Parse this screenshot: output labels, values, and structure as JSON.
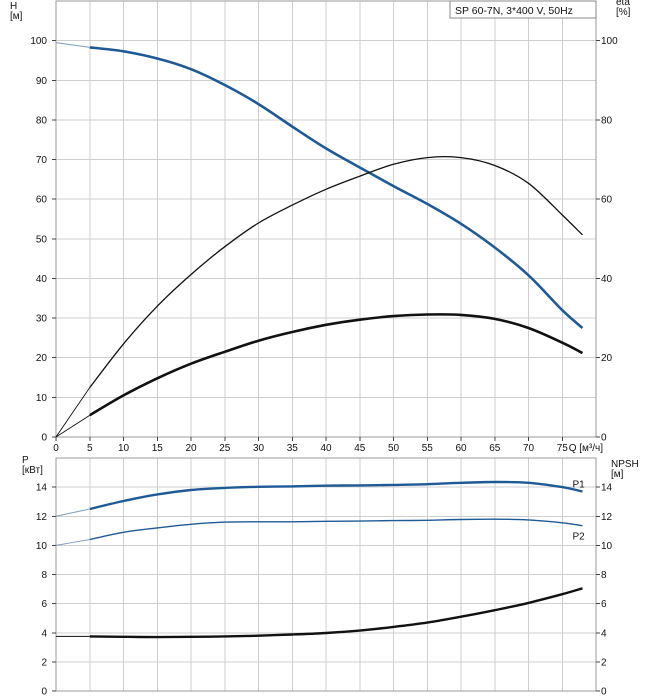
{
  "title": "SP 60-7N, 3*400 V, 50Hz",
  "colors": {
    "blue": "#1f5a96",
    "black": "#111111",
    "grid": "#cfcfcf"
  },
  "chart_data": [
    {
      "type": "line",
      "panel": "head_efficiency",
      "title": "SP 60-7N, 3*400 V, 50Hz",
      "xlabel": "Q [м³/ч]",
      "ylabel": "H\n[м]",
      "ylabel_right": "eta\n[%]",
      "xlim": [
        0,
        80
      ],
      "ylim": [
        0,
        110
      ],
      "ylim_right": [
        0,
        110
      ],
      "x_ticks": [
        0,
        5,
        10,
        15,
        20,
        25,
        30,
        35,
        40,
        45,
        50,
        55,
        60,
        65,
        70,
        75
      ],
      "y_ticks": [
        0,
        10,
        20,
        30,
        40,
        50,
        60,
        70,
        80,
        90,
        100
      ],
      "y_right_ticks": [
        0,
        20,
        40,
        60,
        80,
        100
      ],
      "grid": true,
      "series": [
        {
          "axis": "left",
          "color": "#1f5a96",
          "x": [
            0,
            5,
            10,
            15,
            20,
            25,
            30,
            35,
            40,
            45,
            50,
            55,
            60,
            65,
            70,
            75,
            78
          ],
          "y": [
            99.5,
            98.3,
            97.3,
            95.5,
            92.8,
            88.8,
            84.0,
            78.3,
            72.8,
            68.0,
            63.3,
            58.8,
            53.8,
            47.8,
            40.8,
            32.0,
            27.5
          ]
        },
        {
          "axis": "left",
          "color": "#111111",
          "x": [
            0,
            5,
            10,
            15,
            20,
            25,
            30,
            35,
            40,
            45,
            50,
            55,
            60,
            65,
            70,
            75,
            78
          ],
          "y": [
            0,
            5.5,
            10.5,
            14.8,
            18.5,
            21.5,
            24.3,
            26.5,
            28.3,
            29.6,
            30.5,
            30.9,
            30.8,
            29.8,
            27.5,
            23.8,
            21.2
          ]
        },
        {
          "axis": "right",
          "color": "#111111",
          "x": [
            0,
            5,
            10,
            15,
            20,
            25,
            30,
            35,
            40,
            45,
            50,
            55,
            60,
            65,
            70,
            75,
            78
          ],
          "y": [
            0,
            12.5,
            23.5,
            33,
            41,
            48,
            54,
            58.5,
            62.5,
            65.8,
            68.8,
            70.5,
            70.5,
            68.5,
            64,
            56,
            51
          ]
        }
      ]
    },
    {
      "type": "line",
      "panel": "power_npsh",
      "xlabel": "",
      "ylabel": "P\n[кВт]",
      "ylabel_right": "NPSH\n[м]",
      "xlim": [
        0,
        80
      ],
      "ylim": [
        0,
        16
      ],
      "ylim_right": [
        0,
        16
      ],
      "y_ticks": [
        0,
        2,
        4,
        6,
        8,
        10,
        12,
        14
      ],
      "y_right_ticks": [
        0,
        2,
        4,
        6,
        8,
        10,
        12,
        14
      ],
      "grid": true,
      "series": [
        {
          "name": "P1",
          "axis": "left",
          "color": "#1f5a96",
          "x": [
            0,
            5,
            10,
            15,
            20,
            25,
            30,
            35,
            40,
            45,
            50,
            55,
            60,
            65,
            70,
            75,
            78
          ],
          "y": [
            12.0,
            12.5,
            13.05,
            13.5,
            13.8,
            13.95,
            14.02,
            14.05,
            14.1,
            14.12,
            14.15,
            14.2,
            14.3,
            14.35,
            14.3,
            14.0,
            13.7
          ]
        },
        {
          "name": "P2",
          "axis": "left",
          "color": "#1f5a96",
          "x": [
            0,
            5,
            10,
            15,
            20,
            25,
            30,
            35,
            40,
            45,
            50,
            55,
            60,
            65,
            70,
            75,
            78
          ],
          "y": [
            10.0,
            10.4,
            10.9,
            11.2,
            11.45,
            11.6,
            11.62,
            11.62,
            11.65,
            11.67,
            11.7,
            11.72,
            11.78,
            11.8,
            11.75,
            11.55,
            11.35
          ]
        },
        {
          "axis": "right",
          "color": "#111111",
          "x": [
            5,
            10,
            15,
            20,
            25,
            30,
            35,
            40,
            45,
            50,
            55,
            60,
            65,
            70,
            75,
            78
          ],
          "y": [
            3.75,
            3.72,
            3.7,
            3.72,
            3.75,
            3.8,
            3.88,
            3.98,
            4.15,
            4.4,
            4.7,
            5.1,
            5.55,
            6.05,
            6.65,
            7.05
          ]
        }
      ]
    }
  ]
}
